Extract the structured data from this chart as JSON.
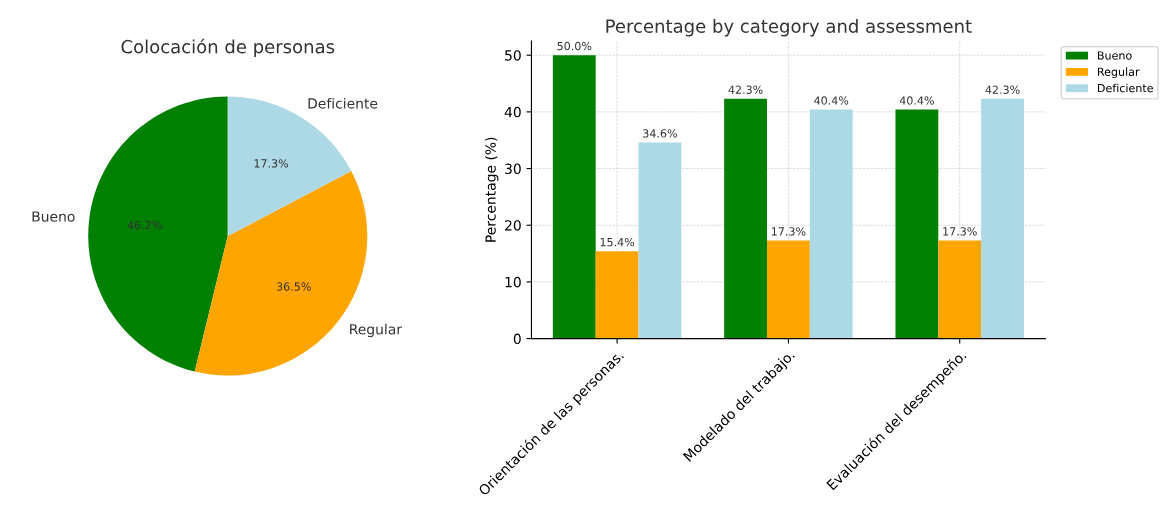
{
  "chart_data": [
    {
      "type": "pie",
      "title": "Colocación de personas",
      "categories": [
        "Bueno",
        "Regular",
        "Deficiente"
      ],
      "values": [
        46.2,
        36.5,
        17.3
      ],
      "colors": [
        "#008000",
        "#ffa500",
        "#add8e6"
      ],
      "value_labels": [
        "46.2%",
        "36.5%",
        "17.3%"
      ]
    },
    {
      "type": "bar",
      "title": "Percentage by category and assessment",
      "ylabel": "Percentage (%)",
      "categories": [
        "Orientación de las personas.",
        "Modelado del trabajo.",
        "Evaluación del desempeño."
      ],
      "series": [
        {
          "name": "Bueno",
          "color": "#008000",
          "values": [
            50.0,
            42.3,
            40.4
          ],
          "value_labels": [
            "50.0%",
            "42.3%",
            "40.4%"
          ]
        },
        {
          "name": "Regular",
          "color": "#ffa500",
          "values": [
            15.4,
            17.3,
            17.3
          ],
          "value_labels": [
            "15.4%",
            "17.3%",
            "17.3%"
          ]
        },
        {
          "name": "Deficiente",
          "color": "#add8e6",
          "values": [
            34.6,
            40.4,
            42.3
          ],
          "value_labels": [
            "34.6%",
            "40.4%",
            "42.3%"
          ]
        }
      ],
      "ylim": [
        0,
        52.5
      ],
      "yticks": [
        0,
        10,
        20,
        30,
        40,
        50
      ],
      "grid": true,
      "legend": "top right"
    }
  ]
}
